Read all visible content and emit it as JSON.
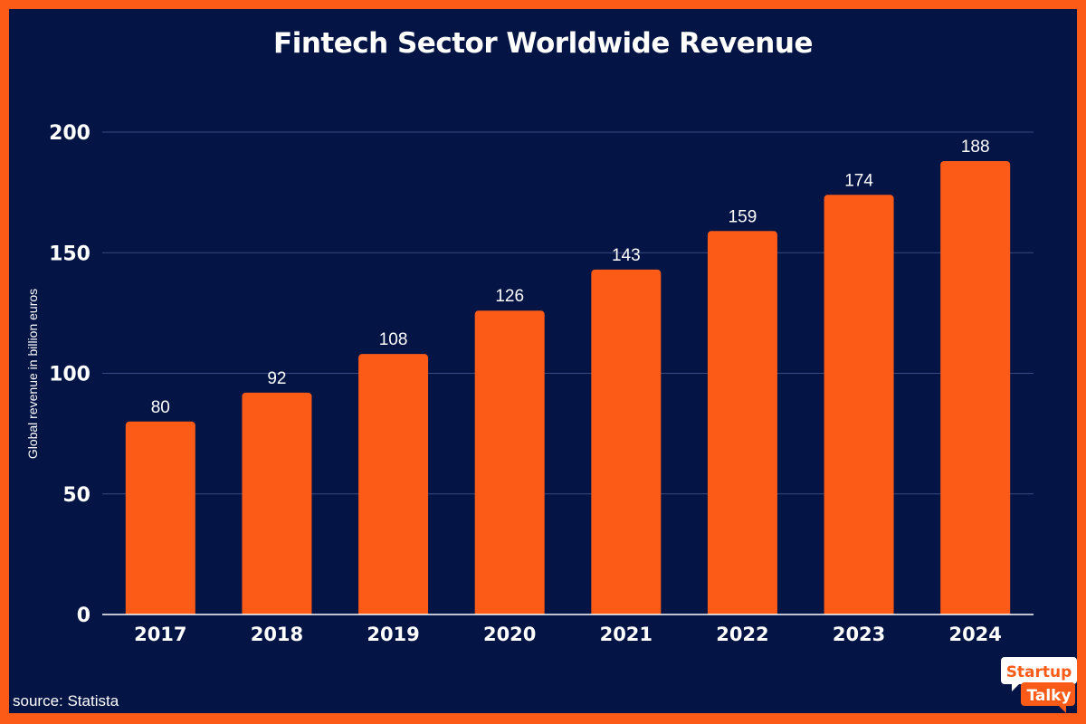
{
  "chart_data": {
    "type": "bar",
    "title": "Fintech Sector Worldwide Revenue",
    "xlabel": "",
    "ylabel": "Global revenue in billion euros",
    "categories": [
      "2017",
      "2018",
      "2019",
      "2020",
      "2021",
      "2022",
      "2023",
      "2024"
    ],
    "values": [
      80,
      92,
      108,
      126,
      143,
      159,
      174,
      188
    ],
    "ylim": [
      0,
      200
    ],
    "yticks": [
      0,
      50,
      100,
      150,
      200
    ],
    "grid": true,
    "bar_color": "#fb5b16",
    "background_color": "#031445",
    "source": "source: Statista"
  },
  "logo": {
    "line1": "Startup",
    "line2": "Talky"
  }
}
